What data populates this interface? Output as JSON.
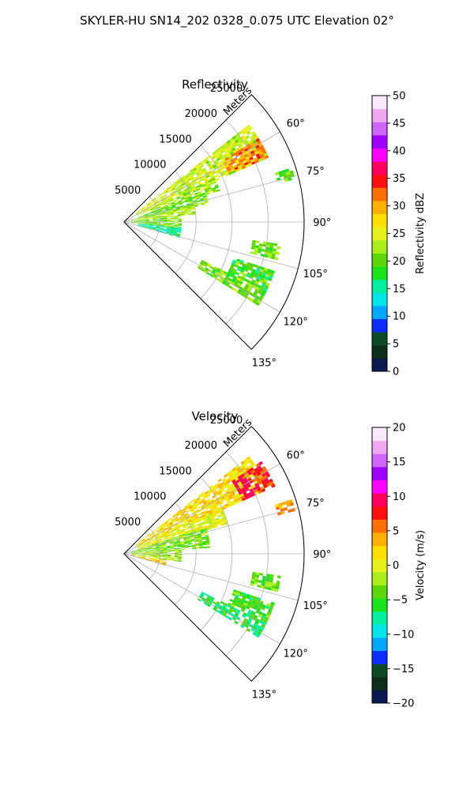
{
  "figure": {
    "suptitle": "SKYLER-HU  SN14_202  0328_0.075 UTC Elevation 02°"
  },
  "chart_data": [
    {
      "type": "polar-radar-sector",
      "title": "Reflectivity",
      "radial_label": "Meters",
      "r_ticks": [
        5000,
        10000,
        15000,
        20000,
        25000
      ],
      "r_tick_labels": [
        "5000",
        "10000",
        "15000",
        "20000",
        "25000"
      ],
      "r_max": 25000,
      "azimuth_range_deg": [
        45,
        135
      ],
      "azimuth_ticks_deg": [
        60,
        75,
        90,
        105,
        120,
        135
      ],
      "azimuth_tick_labels": [
        "60°",
        "75°",
        "90°",
        "105°",
        "120°",
        "135°"
      ],
      "colorbar": {
        "label": "Reflectivity dBZ",
        "range": [
          0,
          50
        ],
        "ticks": [
          0,
          5,
          10,
          15,
          20,
          25,
          30,
          35,
          40,
          45,
          50
        ],
        "tick_labels": [
          "0",
          "5",
          "10",
          "15",
          "20",
          "25",
          "30",
          "35",
          "40",
          "45",
          "50"
        ],
        "colors": [
          "#0a1850",
          "#0c2f1a",
          "#0b4a24",
          "#0a2cff",
          "#00a7ff",
          "#00e6e6",
          "#00f0a0",
          "#1be31b",
          "#5fd60a",
          "#a9ef1b",
          "#e6f21a",
          "#ffe000",
          "#ffb000",
          "#ff7000",
          "#ff1010",
          "#ff0060",
          "#ff00ff",
          "#a000ff",
          "#cc66ff",
          "#f0a8f0",
          "#fce8fc"
        ]
      },
      "echo_regions": [
        {
          "az": [
            52,
            66
          ],
          "r": [
            2000,
            22000
          ],
          "value": 24
        },
        {
          "az": [
            58,
            66
          ],
          "r": [
            16000,
            22000
          ],
          "value": 31
        },
        {
          "az": [
            64,
            72
          ],
          "r": [
            4000,
            14000
          ],
          "value": 22
        },
        {
          "az": [
            70,
            78
          ],
          "r": [
            2000,
            12000
          ],
          "value": 20
        },
        {
          "az": [
            76,
            84
          ],
          "r": [
            1000,
            10000
          ],
          "value": 23
        },
        {
          "az": [
            84,
            96
          ],
          "r": [
            1000,
            8000
          ],
          "value": 21
        },
        {
          "az": [
            96,
            106
          ],
          "r": [
            2000,
            8000
          ],
          "value": 15
        },
        {
          "az": [
            98,
            104
          ],
          "r": [
            18000,
            22000
          ],
          "value": 20
        },
        {
          "az": [
            108,
            116
          ],
          "r": [
            16000,
            22000
          ],
          "value": 19
        },
        {
          "az": [
            116,
            122
          ],
          "r": [
            12000,
            22000
          ],
          "value": 21
        },
        {
          "az": [
            72,
            76
          ],
          "r": [
            22000,
            24500
          ],
          "value": 20
        }
      ]
    },
    {
      "type": "polar-radar-sector",
      "title": "Velocity",
      "radial_label": "Meters",
      "r_ticks": [
        5000,
        10000,
        15000,
        20000,
        25000
      ],
      "r_tick_labels": [
        "5000",
        "10000",
        "15000",
        "20000",
        "25000"
      ],
      "r_max": 25000,
      "azimuth_range_deg": [
        45,
        135
      ],
      "azimuth_ticks_deg": [
        60,
        75,
        90,
        105,
        120,
        135
      ],
      "azimuth_tick_labels": [
        "60°",
        "75°",
        "90°",
        "105°",
        "120°",
        "135°"
      ],
      "colorbar": {
        "label": "Velocity (m/s)",
        "range": [
          -20,
          20
        ],
        "ticks": [
          -20,
          -15,
          -10,
          -5,
          0,
          5,
          10,
          15,
          20
        ],
        "tick_labels": [
          "−20",
          "−15",
          "−10",
          "−5",
          "0",
          "5",
          "10",
          "15",
          "20"
        ],
        "colors": [
          "#0a1850",
          "#0c2f1a",
          "#0b4a24",
          "#0a2cff",
          "#00a7ff",
          "#00e6e6",
          "#00f0a0",
          "#1be31b",
          "#5fd60a",
          "#a9ef1b",
          "#e6f21a",
          "#ffe000",
          "#ffb000",
          "#ff7000",
          "#ff1010",
          "#ff0060",
          "#ff00ff",
          "#a000ff",
          "#cc66ff",
          "#f0a8f0",
          "#fce8fc"
        ]
      },
      "echo_regions": [
        {
          "az": [
            52,
            66
          ],
          "r": [
            2000,
            22000
          ],
          "value": 2
        },
        {
          "az": [
            56,
            66
          ],
          "r": [
            18000,
            23000
          ],
          "value": 8
        },
        {
          "az": [
            64,
            74
          ],
          "r": [
            2000,
            15000
          ],
          "value": 0
        },
        {
          "az": [
            72,
            86
          ],
          "r": [
            1000,
            12000
          ],
          "value": -3
        },
        {
          "az": [
            86,
            98
          ],
          "r": [
            1000,
            8000
          ],
          "value": -2
        },
        {
          "az": [
            98,
            106
          ],
          "r": [
            1000,
            6000
          ],
          "value": 3
        },
        {
          "az": [
            98,
            104
          ],
          "r": [
            18000,
            22000
          ],
          "value": -4
        },
        {
          "az": [
            108,
            116
          ],
          "r": [
            16000,
            22000
          ],
          "value": -5
        },
        {
          "az": [
            116,
            122
          ],
          "r": [
            12000,
            22000
          ],
          "value": -6
        },
        {
          "az": [
            72,
            76
          ],
          "r": [
            22000,
            24500
          ],
          "value": 4
        }
      ]
    }
  ]
}
